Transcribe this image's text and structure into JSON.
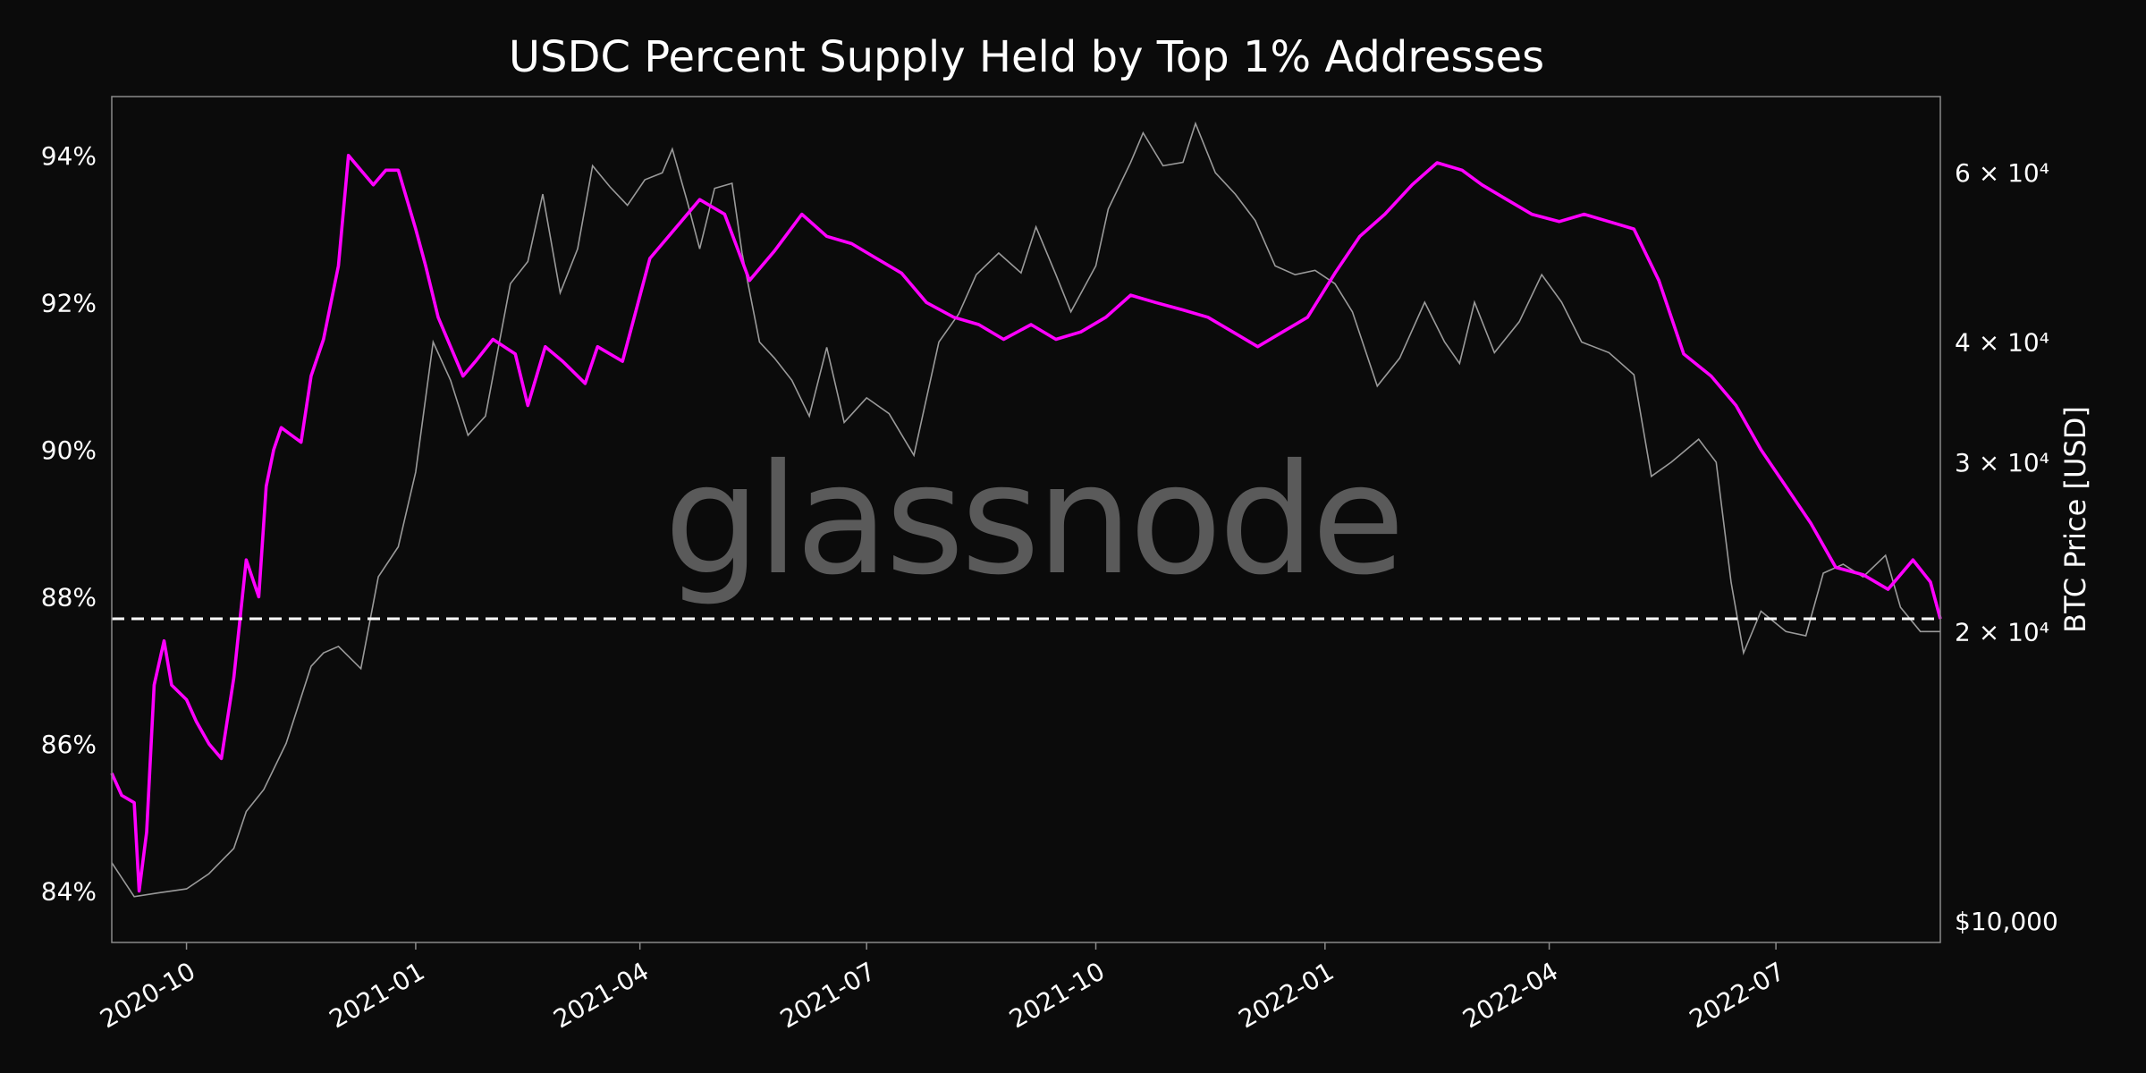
{
  "chart_data": {
    "type": "line",
    "title": "USDC Percent Supply Held by Top 1% Addresses",
    "watermark": "glassnode",
    "x_ticks": [
      "2020-10",
      "2021-01",
      "2021-04",
      "2021-07",
      "2021-10",
      "2022-01",
      "2022-04",
      "2022-07"
    ],
    "left_axis": {
      "ylim": [
        83.3,
        94.8
      ],
      "ticks": [
        84,
        86,
        88,
        90,
        92,
        94
      ],
      "tick_labels": [
        "84%",
        "86%",
        "88%",
        "90%",
        "92%",
        "94%"
      ]
    },
    "right_axis": {
      "label": "BTC Price [USD]",
      "scale": "log",
      "ylim": [
        9500,
        72000
      ],
      "ticks": [
        10000,
        20000,
        30000,
        40000,
        60000
      ],
      "tick_labels": [
        "$10,000",
        "2 × 10⁴",
        "3 × 10⁴",
        "4 × 10⁴",
        "6 × 10⁴"
      ]
    },
    "reference_line": {
      "axis": "left",
      "value": 87.7,
      "style": "dashed",
      "color": "#ffffff"
    },
    "series": [
      {
        "name": "Percent Supply Held by Top 1% Addresses",
        "axis": "left",
        "color": "#ff00ff",
        "x": [
          "2020-09-01",
          "2020-09-05",
          "2020-09-10",
          "2020-09-12",
          "2020-09-15",
          "2020-09-18",
          "2020-09-22",
          "2020-09-25",
          "2020-10-01",
          "2020-10-05",
          "2020-10-10",
          "2020-10-15",
          "2020-10-20",
          "2020-10-25",
          "2020-10-30",
          "2020-11-02",
          "2020-11-05",
          "2020-11-08",
          "2020-11-12",
          "2020-11-16",
          "2020-11-20",
          "2020-11-25",
          "2020-12-01",
          "2020-12-05",
          "2020-12-10",
          "2020-12-15",
          "2020-12-20",
          "2020-12-25",
          "2021-01-01",
          "2021-01-05",
          "2021-01-10",
          "2021-01-15",
          "2021-01-20",
          "2021-01-25",
          "2021-02-01",
          "2021-02-10",
          "2021-02-15",
          "2021-02-22",
          "2021-03-01",
          "2021-03-10",
          "2021-03-15",
          "2021-03-25",
          "2021-04-05",
          "2021-04-15",
          "2021-04-25",
          "2021-05-05",
          "2021-05-15",
          "2021-05-25",
          "2021-06-05",
          "2021-06-15",
          "2021-06-25",
          "2021-07-05",
          "2021-07-15",
          "2021-07-25",
          "2021-08-05",
          "2021-08-15",
          "2021-08-25",
          "2021-09-05",
          "2021-09-15",
          "2021-09-25",
          "2021-10-05",
          "2021-10-15",
          "2021-10-25",
          "2021-11-05",
          "2021-11-15",
          "2021-11-25",
          "2021-12-05",
          "2021-12-15",
          "2021-12-25",
          "2022-01-05",
          "2022-01-15",
          "2022-01-25",
          "2022-02-05",
          "2022-02-15",
          "2022-02-25",
          "2022-03-05",
          "2022-03-15",
          "2022-03-25",
          "2022-04-05",
          "2022-04-15",
          "2022-04-25",
          "2022-05-05",
          "2022-05-15",
          "2022-05-25",
          "2022-06-05",
          "2022-06-15",
          "2022-06-25",
          "2022-07-05",
          "2022-07-15",
          "2022-07-25",
          "2022-08-05",
          "2022-08-15",
          "2022-08-25",
          "2022-09-01",
          "2022-09-05"
        ],
        "values": [
          85.6,
          85.3,
          85.2,
          84.0,
          84.8,
          86.8,
          87.4,
          86.8,
          86.6,
          86.3,
          86.0,
          85.8,
          86.9,
          88.5,
          88.0,
          89.5,
          90.0,
          90.3,
          90.2,
          90.1,
          91.0,
          91.5,
          92.5,
          94.0,
          93.8,
          93.6,
          93.8,
          93.8,
          93.0,
          92.5,
          91.8,
          91.4,
          91.0,
          91.2,
          91.5,
          91.3,
          90.6,
          91.4,
          91.2,
          90.9,
          91.4,
          91.2,
          92.6,
          93.0,
          93.4,
          93.2,
          92.3,
          92.7,
          93.2,
          92.9,
          92.8,
          92.6,
          92.4,
          92.0,
          91.8,
          91.7,
          91.5,
          91.7,
          91.5,
          91.6,
          91.8,
          92.1,
          92.0,
          91.9,
          91.8,
          91.6,
          91.4,
          91.6,
          91.8,
          92.4,
          92.9,
          93.2,
          93.6,
          93.9,
          93.8,
          93.6,
          93.4,
          93.2,
          93.1,
          93.2,
          93.1,
          93.0,
          92.3,
          91.3,
          91.0,
          90.6,
          90.0,
          89.5,
          89.0,
          88.4,
          88.3,
          88.1,
          88.5,
          88.2,
          87.7
        ]
      },
      {
        "name": "BTC Price [USD]",
        "axis": "right",
        "color": "#9a9a9a",
        "x": [
          "2020-09-01",
          "2020-09-10",
          "2020-09-20",
          "2020-10-01",
          "2020-10-10",
          "2020-10-20",
          "2020-10-25",
          "2020-11-01",
          "2020-11-10",
          "2020-11-20",
          "2020-11-25",
          "2020-12-01",
          "2020-12-10",
          "2020-12-17",
          "2020-12-25",
          "2021-01-01",
          "2021-01-08",
          "2021-01-15",
          "2021-01-22",
          "2021-01-29",
          "2021-02-08",
          "2021-02-15",
          "2021-02-21",
          "2021-02-28",
          "2021-03-07",
          "2021-03-13",
          "2021-03-20",
          "2021-03-27",
          "2021-04-03",
          "2021-04-10",
          "2021-04-14",
          "2021-04-20",
          "2021-04-25",
          "2021-05-01",
          "2021-05-08",
          "2021-05-12",
          "2021-05-19",
          "2021-05-25",
          "2021-06-01",
          "2021-06-08",
          "2021-06-15",
          "2021-06-22",
          "2021-07-01",
          "2021-07-10",
          "2021-07-20",
          "2021-07-30",
          "2021-08-07",
          "2021-08-14",
          "2021-08-23",
          "2021-09-01",
          "2021-09-07",
          "2021-09-15",
          "2021-09-21",
          "2021-10-01",
          "2021-10-06",
          "2021-10-15",
          "2021-10-20",
          "2021-10-28",
          "2021-11-05",
          "2021-11-10",
          "2021-11-18",
          "2021-11-26",
          "2021-12-04",
          "2021-12-12",
          "2021-12-20",
          "2021-12-28",
          "2022-01-05",
          "2022-01-12",
          "2022-01-22",
          "2022-01-31",
          "2022-02-10",
          "2022-02-18",
          "2022-02-24",
          "2022-03-02",
          "2022-03-10",
          "2022-03-20",
          "2022-03-29",
          "2022-04-06",
          "2022-04-14",
          "2022-04-25",
          "2022-05-05",
          "2022-05-12",
          "2022-05-20",
          "2022-05-31",
          "2022-06-07",
          "2022-06-13",
          "2022-06-18",
          "2022-06-25",
          "2022-07-05",
          "2022-07-13",
          "2022-07-20",
          "2022-07-28",
          "2022-08-05",
          "2022-08-14",
          "2022-08-20",
          "2022-08-28",
          "2022-09-05"
        ],
        "values": [
          11500,
          10600,
          10700,
          10800,
          11200,
          11900,
          13000,
          13700,
          15300,
          18400,
          19000,
          19300,
          18300,
          22800,
          24500,
          29300,
          40000,
          36500,
          32000,
          33500,
          46000,
          48500,
          57000,
          45000,
          50000,
          61000,
          58000,
          55500,
          59000,
          60000,
          63500,
          56000,
          50000,
          57800,
          58500,
          49500,
          40000,
          38500,
          36500,
          33500,
          39500,
          33000,
          35000,
          33700,
          30500,
          40000,
          42800,
          47000,
          49500,
          47200,
          52700,
          47000,
          43000,
          48000,
          55000,
          61500,
          66000,
          61000,
          61500,
          67500,
          60000,
          57000,
          53500,
          48000,
          47000,
          47500,
          46000,
          43000,
          36000,
          38500,
          44000,
          40000,
          38000,
          44000,
          39000,
          42000,
          47000,
          44000,
          40000,
          39000,
          37000,
          29000,
          30000,
          31700,
          30000,
          22500,
          19000,
          21000,
          20000,
          19800,
          23000,
          23500,
          22800,
          24000,
          21200,
          20000,
          20000
        ]
      }
    ]
  }
}
